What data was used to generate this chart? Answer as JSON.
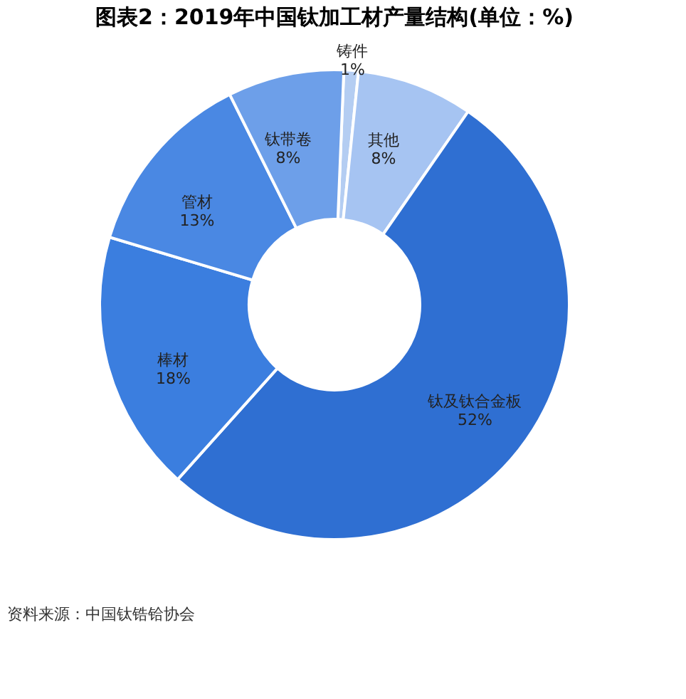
{
  "chart_data": {
    "type": "donut",
    "title": "图表2：2019年中国钛加工材产量结构(单位：%)",
    "categories": [
      "铸件",
      "其他",
      "钛及钛合金板",
      "棒材",
      "管材",
      "钛带卷"
    ],
    "values": [
      1,
      8,
      52,
      18,
      13,
      8
    ],
    "value_labels": [
      "1%",
      "8%",
      "52%",
      "18%",
      "13%",
      "8%"
    ],
    "colors": [
      "#b4cdf2",
      "#a6c4f2",
      "#2f6fd2",
      "#3b7edf",
      "#4a88e3",
      "#6d9fe9"
    ],
    "legend": false,
    "annotations": [
      "资料来源：中国钛锆铪协会"
    ]
  }
}
